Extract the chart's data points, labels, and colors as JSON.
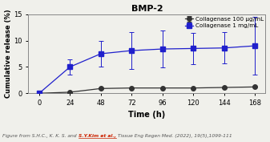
{
  "title": "BMP-2",
  "xlabel": "Time (h)",
  "ylabel": "Cumulative release (%)",
  "x": [
    0,
    24,
    48,
    72,
    96,
    120,
    144,
    168
  ],
  "series1": {
    "label": "Collagenase 100 μg/mL",
    "y": [
      0,
      0.2,
      0.9,
      1.0,
      1.0,
      1.0,
      1.1,
      1.2
    ],
    "yerr": [
      0,
      0.1,
      0.15,
      0.12,
      0.1,
      0.08,
      0.1,
      0.15
    ],
    "color": "#333333",
    "marker": "o",
    "markersize": 4
  },
  "series2": {
    "label": "Collagenase 1 mg/mL",
    "y": [
      0,
      5.0,
      7.5,
      8.1,
      8.4,
      8.5,
      8.6,
      9.0
    ],
    "yerr": [
      0.1,
      1.5,
      2.5,
      3.5,
      3.5,
      3.0,
      3.0,
      5.5
    ],
    "color": "#2020cc",
    "marker": "s",
    "markersize": 4
  },
  "ylim": [
    0,
    15
  ],
  "yticks": [
    0,
    5,
    10,
    15
  ],
  "xticks": [
    0,
    24,
    48,
    72,
    96,
    120,
    144,
    168
  ],
  "caption_before": "Figure from S.H.C., K. K. S. and ",
  "caption_link": "S.Y.Kim et al.,",
  "caption_after": " Tissue Eng Regen Med. (2022), 19(5),1099-111",
  "bg_color": "#f0f0eb"
}
